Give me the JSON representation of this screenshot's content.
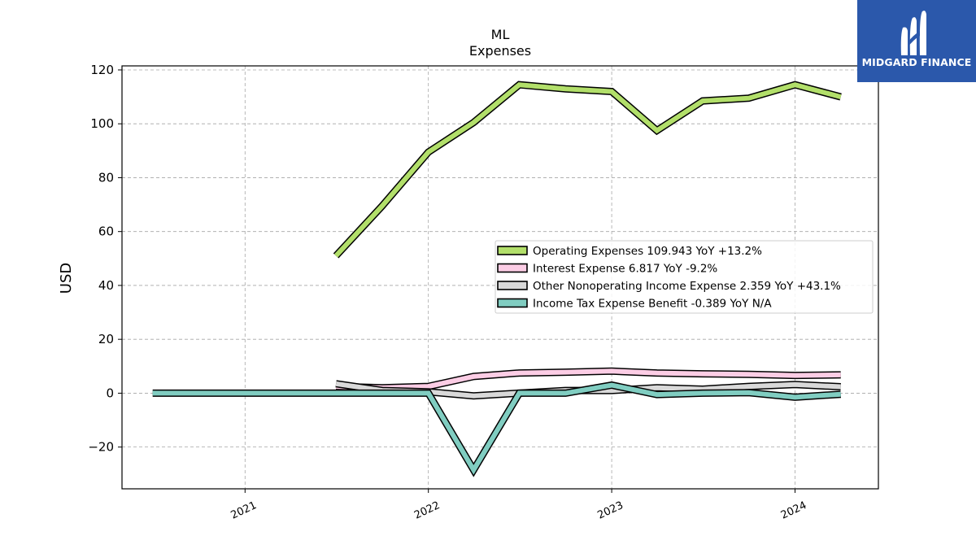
{
  "title": "ML",
  "subtitle": "Expenses",
  "brand": {
    "name": "MIDGARD FINANCE",
    "color": "#2b58ab"
  },
  "chart_data": {
    "type": "line",
    "title": "ML",
    "subtitle": "Expenses",
    "xlabel": "",
    "ylabel": "USD",
    "x_ticks": [
      "2021",
      "2022",
      "2023",
      "2024"
    ],
    "y_ticks": [
      -20,
      0,
      20,
      40,
      60,
      80,
      100,
      120
    ],
    "ylim": [
      -35.5,
      121.5
    ],
    "xlim": [
      "2020-05-01",
      "2024-06-15"
    ],
    "grid": true,
    "legend_position": "center-right",
    "series": [
      {
        "name": "Operating Expenses",
        "legend_label": "Operating Expenses  109.943 YoY +13.2%",
        "color": "#b2df6a",
        "points": [
          [
            "2021-07-01",
            51
          ],
          [
            "2021-10-01",
            69.5
          ],
          [
            "2022-01-01",
            89.5
          ],
          [
            "2022-04-01",
            100.5
          ],
          [
            "2022-07-01",
            114.5
          ],
          [
            "2022-10-01",
            113
          ],
          [
            "2023-01-01",
            112
          ],
          [
            "2023-04-01",
            97.5
          ],
          [
            "2023-07-01",
            108.5
          ],
          [
            "2023-10-01",
            109.5
          ],
          [
            "2024-01-01",
            114.5
          ],
          [
            "2024-04-01",
            110
          ]
        ]
      },
      {
        "name": "Interest Expense",
        "legend_label": "Interest Expense  6.817 YoY -9.2%",
        "color": "#fccde5",
        "points": [
          [
            "2021-07-01",
            2.5
          ],
          [
            "2021-10-01",
            2
          ],
          [
            "2022-01-01",
            2.5
          ],
          [
            "2022-04-01",
            6.2
          ],
          [
            "2022-07-01",
            7.5
          ],
          [
            "2022-10-01",
            7.8
          ],
          [
            "2023-01-01",
            8.2
          ],
          [
            "2023-04-01",
            7.5
          ],
          [
            "2023-07-01",
            7.2
          ],
          [
            "2023-10-01",
            7
          ],
          [
            "2024-01-01",
            6.6
          ],
          [
            "2024-04-01",
            6.8
          ]
        ]
      },
      {
        "name": "Other Nonoperating Income Expense",
        "legend_label": "Other Nonoperating Income Expense  2.359 YoY +43.1%",
        "color": "#d9d9d9",
        "points": [
          [
            "2021-07-01",
            3.5
          ],
          [
            "2021-10-01",
            1
          ],
          [
            "2022-01-01",
            0.5
          ],
          [
            "2022-04-01",
            -1
          ],
          [
            "2022-07-01",
            0
          ],
          [
            "2022-10-01",
            1
          ],
          [
            "2023-01-01",
            1
          ],
          [
            "2023-04-01",
            2
          ],
          [
            "2023-07-01",
            1.5
          ],
          [
            "2023-10-01",
            2.5
          ],
          [
            "2024-01-01",
            3.2
          ],
          [
            "2024-04-01",
            2.4
          ]
        ]
      },
      {
        "name": "Income Tax Expense Benefit",
        "legend_label": "Income Tax Expense Benefit  -0.389 YoY N/A",
        "color": "#80cdc1",
        "points": [
          [
            "2020-07-01",
            0
          ],
          [
            "2020-10-01",
            0
          ],
          [
            "2021-01-01",
            0
          ],
          [
            "2021-04-01",
            0
          ],
          [
            "2021-07-01",
            0
          ],
          [
            "2021-10-01",
            0
          ],
          [
            "2022-01-01",
            0
          ],
          [
            "2022-04-01",
            -28.5
          ],
          [
            "2022-07-01",
            0
          ],
          [
            "2022-10-01",
            0
          ],
          [
            "2023-01-01",
            3
          ],
          [
            "2023-04-01",
            -0.5
          ],
          [
            "2023-07-01",
            0
          ],
          [
            "2023-10-01",
            0.2
          ],
          [
            "2024-01-01",
            -1.5
          ],
          [
            "2024-04-01",
            -0.4
          ]
        ]
      }
    ]
  }
}
